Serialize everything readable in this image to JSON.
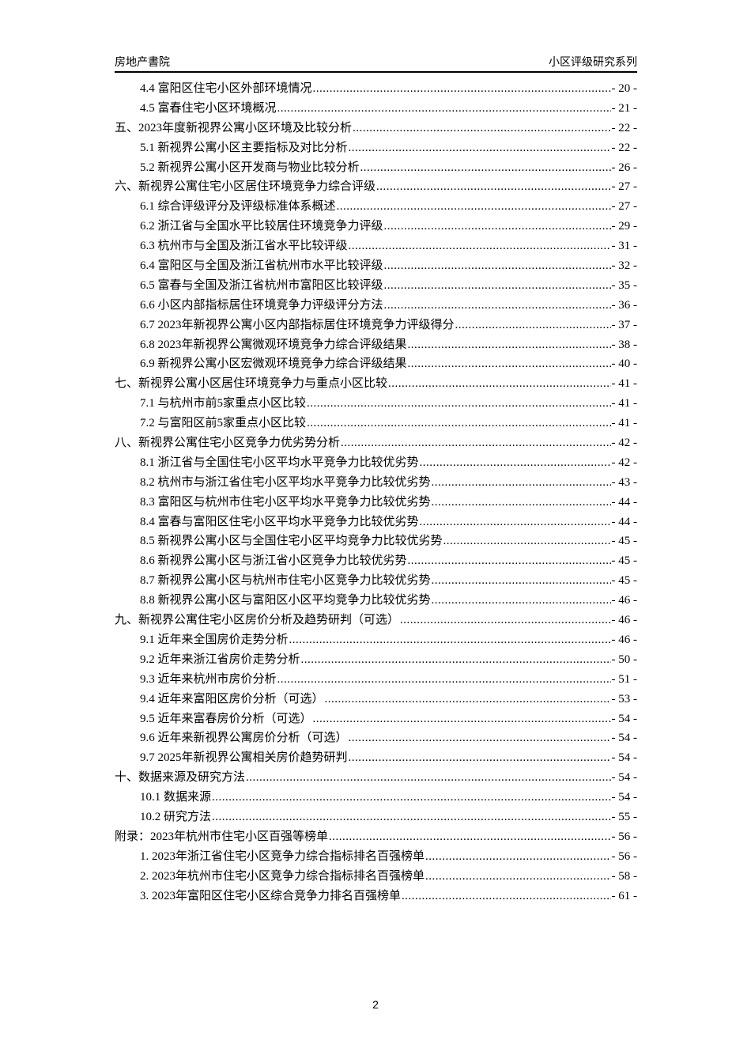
{
  "header": {
    "left": "房地产書院",
    "right": "小区评级研究系列"
  },
  "toc": [
    {
      "level": 2,
      "title": "4.4 富阳区住宅小区外部环境情况",
      "page": "- 20 -"
    },
    {
      "level": 2,
      "title": "4.5 富春住宅小区环境概况",
      "page": "- 21 -"
    },
    {
      "level": 1,
      "title": "五、2023年度新视界公寓小区环境及比较分析",
      "page": "- 22 -"
    },
    {
      "level": 2,
      "title": "5.1 新视界公寓小区主要指标及对比分析",
      "page": "- 22 -"
    },
    {
      "level": 2,
      "title": "5.2 新视界公寓小区开发商与物业比较分析",
      "page": "- 26 -"
    },
    {
      "level": 1,
      "title": "六、新视界公寓住宅小区居住环境竞争力综合评级",
      "page": "- 27 -"
    },
    {
      "level": 2,
      "title": "6.1 综合评级评分及评级标准体系概述",
      "page": "- 27 -"
    },
    {
      "level": 2,
      "title": "6.2 浙江省与全国水平比较居住环境竞争力评级",
      "page": "- 29 -"
    },
    {
      "level": 2,
      "title": "6.3 杭州市与全国及浙江省水平比较评级",
      "page": "- 31 -"
    },
    {
      "level": 2,
      "title": "6.4 富阳区与全国及浙江省杭州市水平比较评级",
      "page": "- 32 -"
    },
    {
      "level": 2,
      "title": "6.5 富春与全国及浙江省杭州市富阳区比较评级",
      "page": "- 35 -"
    },
    {
      "level": 2,
      "title": "6.6 小区内部指标居住环境竞争力评级评分方法",
      "page": "- 36 -"
    },
    {
      "level": 2,
      "title": "6.7 2023年新视界公寓小区内部指标居住环境竞争力评级得分",
      "page": "- 37 -"
    },
    {
      "level": 2,
      "title": "6.8 2023年新视界公寓微观环境竞争力综合评级结果",
      "page": "- 38 -"
    },
    {
      "level": 2,
      "title": "6.9 新视界公寓小区宏微观环境竞争力综合评级结果",
      "page": "- 40 -"
    },
    {
      "level": 1,
      "title": "七、新视界公寓小区居住环境竞争力与重点小区比较",
      "page": "- 41 -"
    },
    {
      "level": 2,
      "title": "7.1 与杭州市前5家重点小区比较",
      "page": "- 41 -"
    },
    {
      "level": 2,
      "title": "7.2 与富阳区前5家重点小区比较",
      "page": "- 41 -"
    },
    {
      "level": 1,
      "title": "八、新视界公寓住宅小区竞争力优劣势分析",
      "page": "- 42 -"
    },
    {
      "level": 2,
      "title": "8.1 浙江省与全国住宅小区平均水平竞争力比较优劣势",
      "page": "- 42 -"
    },
    {
      "level": 2,
      "title": "8.2 杭州市与浙江省住宅小区平均水平竞争力比较优劣势",
      "page": "- 43 -"
    },
    {
      "level": 2,
      "title": "8.3 富阳区与杭州市住宅小区平均水平竞争力比较优劣势",
      "page": "- 44 -"
    },
    {
      "level": 2,
      "title": "8.4 富春与富阳区住宅小区平均水平竞争力比较优劣势",
      "page": "- 44 -"
    },
    {
      "level": 2,
      "title": "8.5 新视界公寓小区与全国住宅小区平均竞争力比较优劣势",
      "page": "- 45 -"
    },
    {
      "level": 2,
      "title": "8.6 新视界公寓小区与浙江省小区竞争力比较优劣势",
      "page": "- 45 -"
    },
    {
      "level": 2,
      "title": "8.7 新视界公寓小区与杭州市住宅小区竞争力比较优劣势",
      "page": "- 45 -"
    },
    {
      "level": 2,
      "title": "8.8 新视界公寓小区与富阳区小区平均竞争力比较优劣势",
      "page": "- 46 -"
    },
    {
      "level": 1,
      "title": "九、新视界公寓住宅小区房价分析及趋势研判（可选）",
      "page": "- 46 -"
    },
    {
      "level": 2,
      "title": "9.1 近年来全国房价走势分析",
      "page": "- 46 -"
    },
    {
      "level": 2,
      "title": "9.2 近年来浙江省房价走势分析",
      "page": "- 50 -"
    },
    {
      "level": 2,
      "title": "9.3 近年来杭州市房价分析",
      "page": "- 51 -"
    },
    {
      "level": 2,
      "title": "9.4 近年来富阳区房价分析（可选）",
      "page": "- 53 -"
    },
    {
      "level": 2,
      "title": "9.5 近年来富春房价分析（可选）",
      "page": "- 54 -"
    },
    {
      "level": 2,
      "title": "9.6 近年来新视界公寓房价分析（可选）",
      "page": "- 54 -"
    },
    {
      "level": 2,
      "title": "9.7 2025年新视界公寓相关房价趋势研判",
      "page": "- 54 -"
    },
    {
      "level": 1,
      "title": "十、数据来源及研究方法",
      "page": "- 54 -"
    },
    {
      "level": 2,
      "title": "10.1 数据来源",
      "page": "- 54 -"
    },
    {
      "level": 2,
      "title": "10.2 研究方法",
      "page": "- 55 -"
    },
    {
      "level": 1,
      "title": "附录：2023年杭州市住宅小区百强等榜单",
      "page": "- 56 -"
    },
    {
      "level": 2,
      "title": "1. 2023年浙江省住宅小区竞争力综合指标排名百强榜单",
      "page": "- 56 -"
    },
    {
      "level": 2,
      "title": "2. 2023年杭州市住宅小区竞争力综合指标排名百强榜单",
      "page": "- 58 -"
    },
    {
      "level": 2,
      "title": "3. 2023年富阳区住宅小区综合竞争力排名百强榜单",
      "page": "- 61 -"
    }
  ],
  "footer": {
    "page_number": "2"
  }
}
